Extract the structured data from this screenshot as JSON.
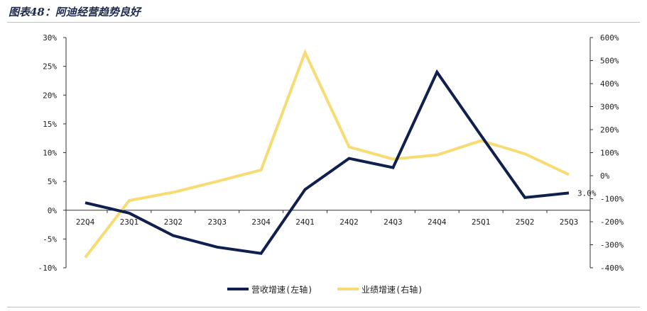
{
  "figure": {
    "title": "图表48：阿迪经营趋势良好"
  },
  "colors": {
    "revenue": "#0f1f4e",
    "profit": "#f7dc74",
    "axis": "#333333",
    "rule": "#b8c0cc"
  },
  "chart_data": {
    "type": "line",
    "title": "",
    "xlabel": "",
    "ylabel": "",
    "categories": [
      "22Q4",
      "23Q1",
      "23Q2",
      "23Q3",
      "23Q4",
      "24Q1",
      "24Q2",
      "24Q3",
      "24Q4",
      "25Q1",
      "25Q2",
      "25Q3"
    ],
    "y_left": {
      "ticks": [
        "30%",
        "25%",
        "20%",
        "15%",
        "10%",
        "5%",
        "0%",
        "-5%",
        "-10%"
      ],
      "ylim": [
        -10,
        30
      ],
      "unit": "%"
    },
    "y_right": {
      "ticks": [
        "600%",
        "500%",
        "400%",
        "300%",
        "200%",
        "100%",
        "0%",
        "-100%",
        "-200%",
        "-300%",
        "-400%"
      ],
      "ylim": [
        -400,
        600
      ],
      "unit": "%"
    },
    "series": [
      {
        "name": "营收增速(左轴)",
        "axis": "left",
        "values": [
          1.3,
          -0.5,
          -4.4,
          -6.4,
          -7.5,
          3.6,
          9.0,
          7.4,
          24.0,
          13.0,
          2.2,
          3.0
        ]
      },
      {
        "name": "业绩增速(右轴)",
        "axis": "right",
        "values": [
          -355,
          -108,
          -72,
          -25,
          25,
          535,
          125,
          72,
          90,
          152,
          95,
          5
        ]
      }
    ],
    "annotations": [
      {
        "text": "3.0%",
        "series": 0,
        "category": "25Q3"
      }
    ],
    "legend": {
      "placement": "bottom",
      "items": [
        "营收增速(左轴)",
        "业绩增速(右轴)"
      ]
    },
    "grid": false
  }
}
